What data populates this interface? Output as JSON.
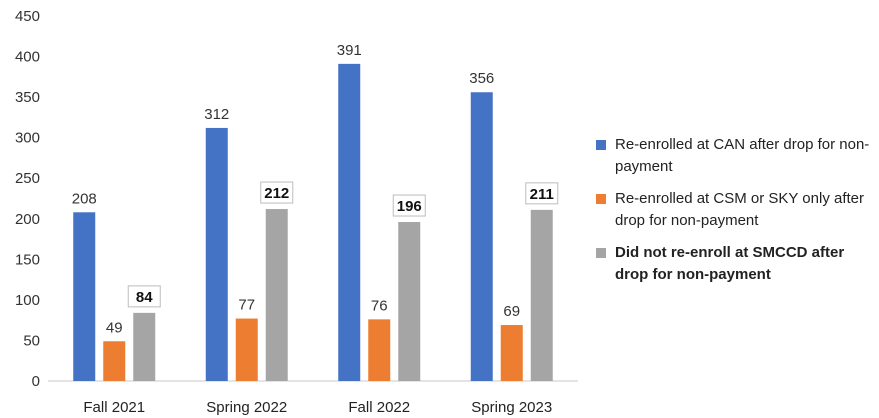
{
  "chart_data": {
    "type": "bar",
    "categories": [
      "Fall 2021",
      "Spring 2022",
      "Fall 2022",
      "Spring 2023"
    ],
    "series": [
      {
        "name": "Re-enrolled at CAN after drop for non-payment",
        "values": [
          208,
          312,
          391,
          356
        ],
        "color": "#4472C4",
        "label_style": "plain"
      },
      {
        "name": "Re-enrolled at CSM or SKY only after drop for non-payment",
        "values": [
          49,
          77,
          76,
          69
        ],
        "color": "#ED7D31",
        "label_style": "plain"
      },
      {
        "name": "Did not re-enroll at SMCCD after drop for non-payment",
        "values": [
          84,
          212,
          196,
          211
        ],
        "color": "#A5A5A5",
        "label_style": "boxed-bold"
      }
    ],
    "yticks": [
      0,
      50,
      100,
      150,
      200,
      250,
      300,
      350,
      400,
      450
    ],
    "ylim": [
      0,
      450
    ],
    "grid": false,
    "legend_position": "right"
  }
}
